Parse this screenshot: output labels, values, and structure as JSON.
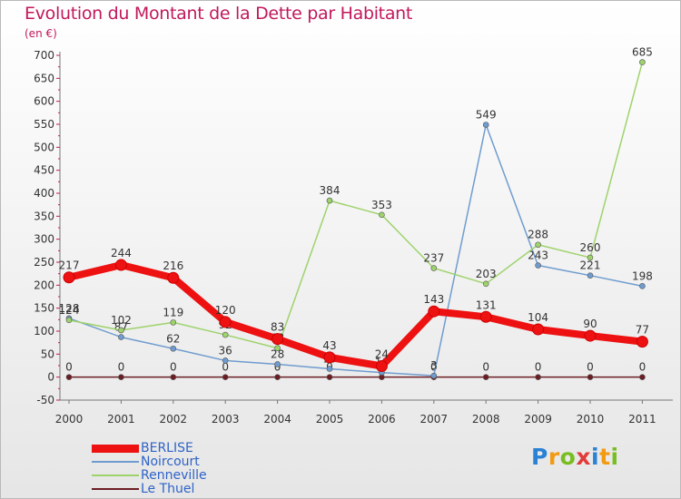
{
  "title": "Evolution du Montant de la Dette par Habitant",
  "unit": "(en €)",
  "logo": {
    "text": "Proxiti",
    "letter_colors": [
      "#2a82d5",
      "#f29a12",
      "#78be20",
      "#e23b3b",
      "#2a82d5",
      "#f29a12",
      "#78be20"
    ]
  },
  "chart_data": {
    "type": "line",
    "categories": [
      "2000",
      "2001",
      "2002",
      "2003",
      "2004",
      "2005",
      "2006",
      "2007",
      "2008",
      "2009",
      "2010",
      "2011"
    ],
    "ylim": [
      -50,
      700
    ],
    "yticks": [
      -50,
      0,
      50,
      100,
      150,
      200,
      250,
      300,
      350,
      400,
      450,
      500,
      550,
      600,
      650,
      700
    ],
    "grid": false,
    "legend_position": "bottom-left",
    "series": [
      {
        "name": "Le Thuel",
        "color": "#6b1d24",
        "values": [
          0,
          0,
          0,
          0,
          0,
          0,
          0,
          0,
          0,
          0,
          0,
          0
        ]
      },
      {
        "name": "Noircourt",
        "color": "#6f9ccf",
        "values": [
          128,
          87,
          62,
          36,
          28,
          18,
          10,
          3,
          549,
          243,
          221,
          198
        ]
      },
      {
        "name": "Renneville",
        "color": "#9ed36c",
        "values": [
          124,
          102,
          119,
          92,
          63,
          384,
          353,
          237,
          203,
          288,
          260,
          685
        ]
      },
      {
        "name": "BERLISE",
        "color": "#ee1111",
        "values": [
          217,
          244,
          216,
          120,
          83,
          43,
          24,
          143,
          131,
          104,
          90,
          77
        ]
      }
    ],
    "legend_order": [
      "BERLISE",
      "Noircourt",
      "Renneville",
      "Le Thuel"
    ]
  }
}
